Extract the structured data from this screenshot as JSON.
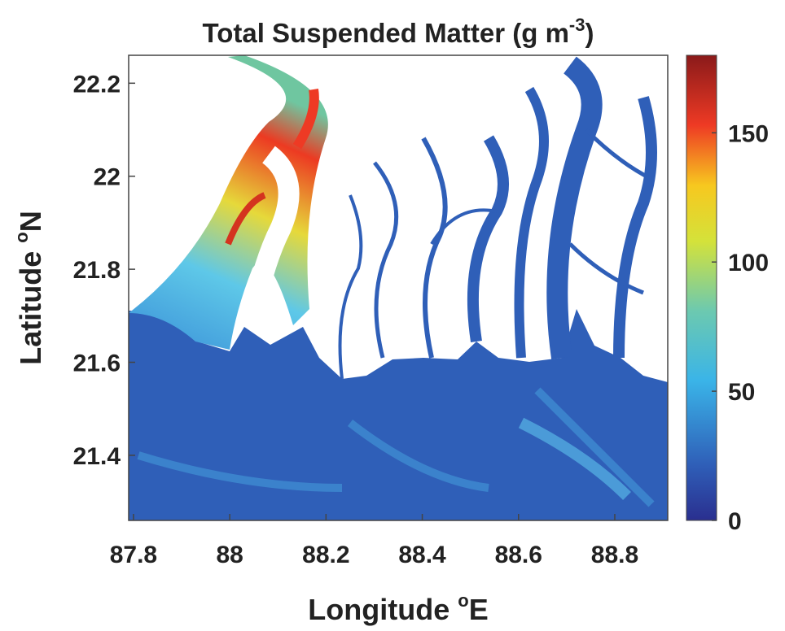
{
  "chart_data": {
    "type": "map",
    "title": {
      "text": "Total Suspended Matter (g m",
      "superscript": "-3",
      "end": ")"
    },
    "xlabel": {
      "text": "Longitude ",
      "superscript": "o",
      "end": "E"
    },
    "ylabel": {
      "text": "Latitude ",
      "superscript": "o",
      "end": "N"
    },
    "xlim": [
      87.79,
      88.91
    ],
    "xticks": [
      87.8,
      88,
      88.2,
      88.4,
      88.6,
      88.8
    ],
    "ylim": [
      21.26,
      22.26
    ],
    "yticks": [
      21.4,
      21.6,
      21.8,
      22,
      22.2
    ],
    "colorbar": {
      "clim": [
        0,
        180
      ],
      "ticks": [
        0,
        50,
        100,
        150
      ]
    }
  }
}
